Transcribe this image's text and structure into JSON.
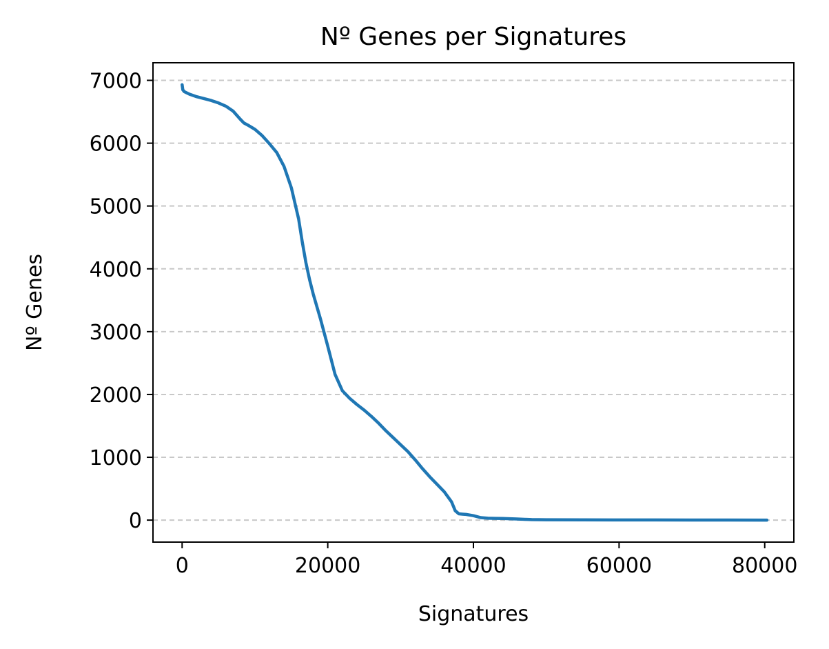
{
  "chart_data": {
    "type": "line",
    "title": "Nº Genes per Signatures",
    "xlabel": "Signatures",
    "ylabel": "Nº Genes",
    "xlim": [
      -4000,
      84000
    ],
    "ylim": [
      -350,
      7280
    ],
    "xticks": [
      0,
      20000,
      40000,
      60000,
      80000
    ],
    "yticks": [
      0,
      1000,
      2000,
      3000,
      4000,
      5000,
      6000,
      7000
    ],
    "grid": "y-dashed",
    "line_color": "#1f77b4",
    "grid_color": "#c8c8c8",
    "series": [
      {
        "x": [
          0,
          100,
          300,
          1000,
          2000,
          3000,
          4000,
          5000,
          6000,
          7000,
          8000,
          8500,
          9000,
          10000,
          11000,
          12000,
          13000,
          14000,
          15000,
          16000,
          16500,
          17000,
          17500,
          18000,
          19000,
          20000,
          21000,
          22000,
          23000,
          24000,
          25000,
          26000,
          27000,
          28000,
          29000,
          30000,
          31000,
          32000,
          33000,
          34000,
          35000,
          36000,
          37000,
          37500,
          38000,
          38500,
          39000,
          40000,
          41000,
          42000,
          43000,
          44000,
          45000,
          46000,
          47000,
          48000,
          50000,
          55000,
          60000,
          65000,
          70000,
          75000,
          80000,
          80300
        ],
        "y": [
          6930,
          6850,
          6820,
          6780,
          6740,
          6710,
          6680,
          6640,
          6590,
          6510,
          6380,
          6320,
          6290,
          6220,
          6120,
          5990,
          5850,
          5630,
          5290,
          4790,
          4430,
          4100,
          3830,
          3600,
          3200,
          2770,
          2320,
          2060,
          1940,
          1840,
          1750,
          1650,
          1540,
          1420,
          1310,
          1200,
          1090,
          960,
          820,
          690,
          570,
          450,
          290,
          150,
          100,
          95,
          90,
          70,
          40,
          30,
          28,
          25,
          22,
          18,
          12,
          8,
          6,
          3,
          2,
          2,
          1,
          1,
          0,
          0
        ]
      }
    ]
  }
}
